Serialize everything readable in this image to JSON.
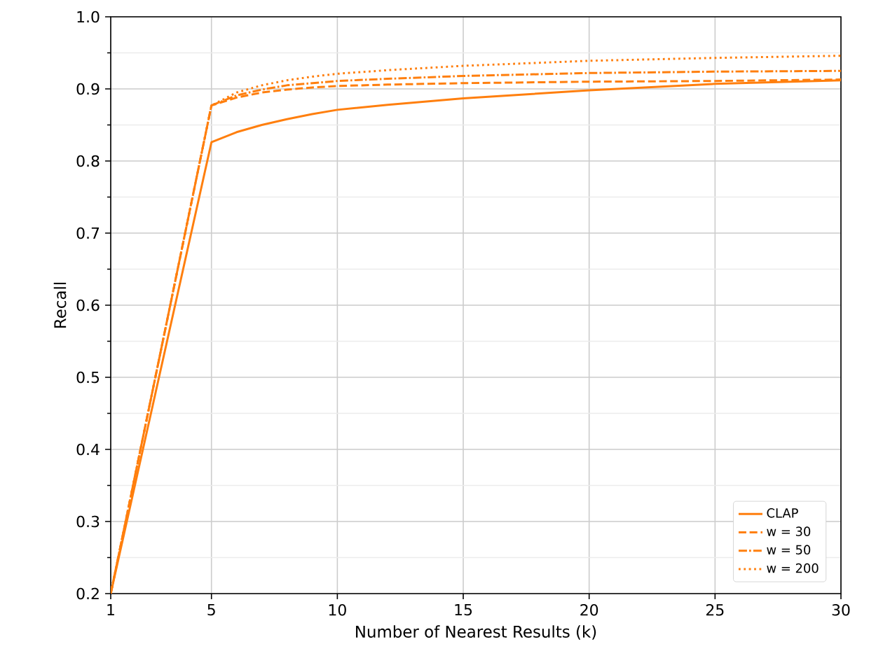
{
  "chart_data": {
    "type": "line",
    "xlabel": "Number of Nearest Results (k)",
    "ylabel": "Recall",
    "x": [
      1,
      5,
      6,
      7,
      8,
      9,
      10,
      12,
      15,
      20,
      25,
      30
    ],
    "series": [
      {
        "name": "CLAP",
        "color": "#ff7f0e",
        "line_style": "solid",
        "values": [
          0.2,
          0.826,
          0.84,
          0.85,
          0.858,
          0.865,
          0.871,
          0.878,
          0.887,
          0.898,
          0.907,
          0.912
        ]
      },
      {
        "name": "w = 30",
        "color": "#ff7f0e",
        "line_style": "dashed",
        "values": [
          0.2,
          0.877,
          0.888,
          0.895,
          0.899,
          0.902,
          0.904,
          0.906,
          0.908,
          0.91,
          0.911,
          0.913
        ]
      },
      {
        "name": "w = 50",
        "color": "#ff7f0e",
        "line_style": "dashdot",
        "values": [
          0.2,
          0.877,
          0.891,
          0.899,
          0.905,
          0.908,
          0.911,
          0.914,
          0.918,
          0.922,
          0.924,
          0.925
        ]
      },
      {
        "name": "w = 200",
        "color": "#ff7f0e",
        "line_style": "dotted",
        "values": [
          0.2,
          0.877,
          0.895,
          0.905,
          0.912,
          0.917,
          0.921,
          0.926,
          0.932,
          0.939,
          0.943,
          0.946
        ]
      }
    ],
    "xlim": [
      1,
      30
    ],
    "xticks": [
      1,
      5,
      10,
      15,
      20,
      25,
      30
    ],
    "ylim": [
      0.2,
      1.0
    ],
    "yticks": [
      0.2,
      0.3,
      0.4,
      0.5,
      0.6,
      0.7,
      0.8,
      0.9,
      {
        "value": 1,
        "label": "1.0"
      }
    ],
    "grid": true,
    "legend": "bottom right",
    "marker": "none"
  }
}
